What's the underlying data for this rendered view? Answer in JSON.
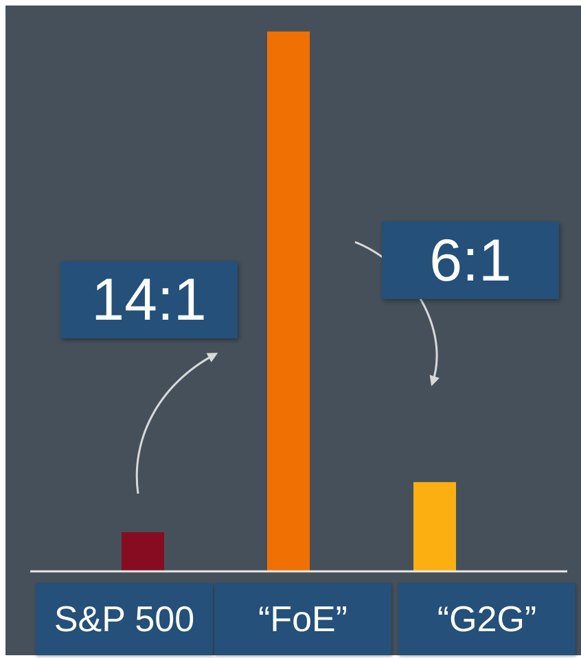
{
  "colors": {
    "background": "#46505b",
    "label_box": "#24507a",
    "baseline": "#e8e8e8",
    "arrow": "#d9d9d9",
    "text": "#ffffff"
  },
  "ratios": {
    "left": "14:1",
    "right": "6:1"
  },
  "chart_data": {
    "type": "bar",
    "title": "",
    "xlabel": "",
    "ylabel": "",
    "categories": [
      "S&P 500",
      "“FoE”",
      "“G2G”"
    ],
    "values": [
      1,
      14,
      2.3
    ],
    "bar_colors": [
      "#870c22",
      "#f07004",
      "#fcaf11"
    ],
    "ylim": [
      0,
      14.3
    ],
    "grid": false,
    "legend": "none",
    "annotations": [
      {
        "text": "14:1",
        "from": "S&P 500",
        "to": "“FoE”"
      },
      {
        "text": "6:1",
        "from": "“FoE”",
        "to": "“G2G”"
      }
    ]
  }
}
